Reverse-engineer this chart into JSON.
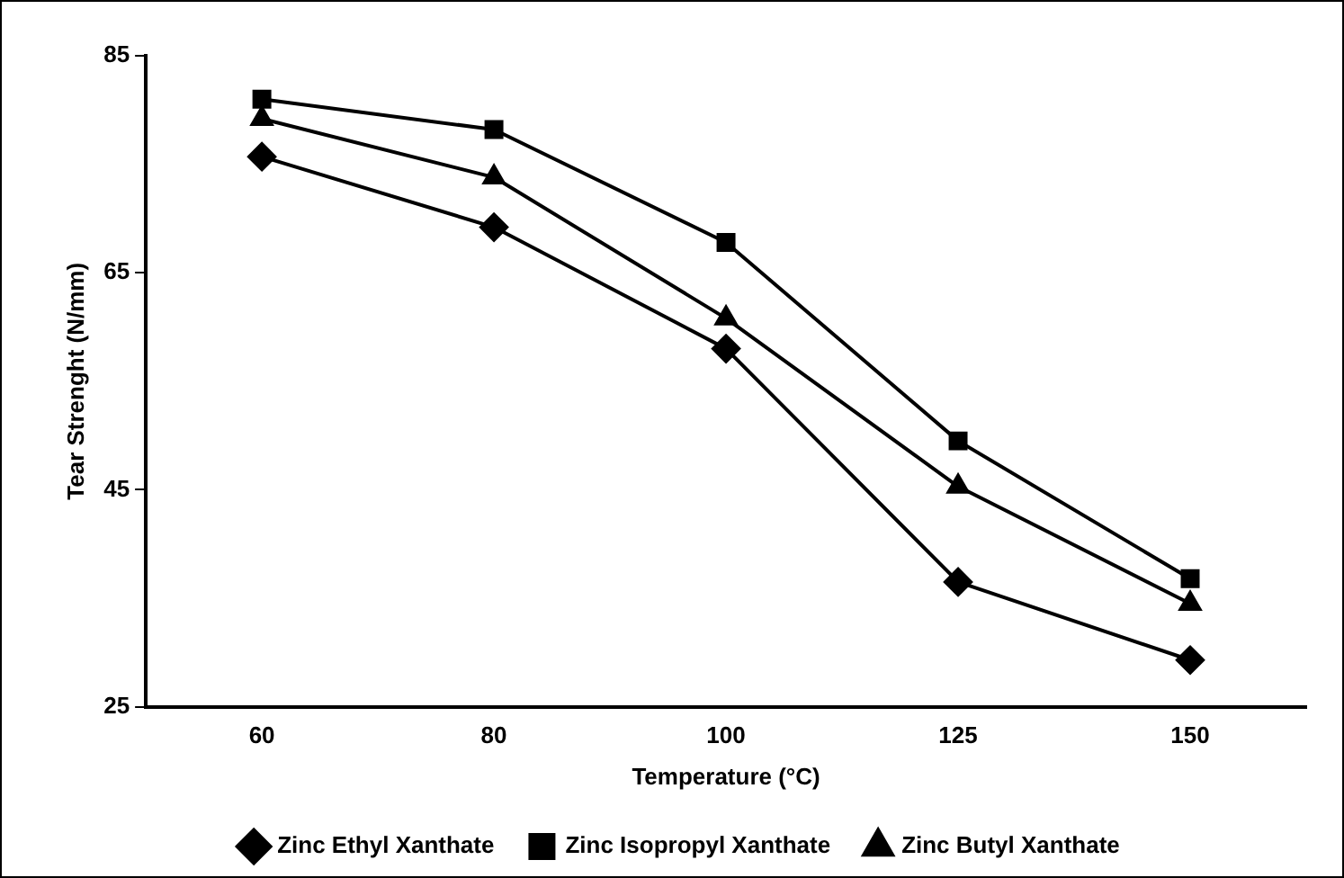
{
  "chart_data": {
    "type": "line",
    "xlabel": "Temperature (°C)",
    "ylabel": "Tear Strenght (N/mm)",
    "categories": [
      "60",
      "80",
      "100",
      "125",
      "150"
    ],
    "series": [
      {
        "name": "Zinc Ethyl Xanthate",
        "color": "#000000",
        "marker": "diamond",
        "values": [
          75.7,
          69.2,
          58.0,
          36.5,
          29.3
        ]
      },
      {
        "name": "Zinc Isopropyl Xanthate",
        "color": "#000000",
        "marker": "square",
        "values": [
          81.0,
          78.2,
          67.8,
          49.5,
          36.8
        ]
      },
      {
        "name": "Zinc Butyl Xanthate",
        "color": "#000000",
        "marker": "triangle",
        "values": [
          79.2,
          73.8,
          60.8,
          45.3,
          34.5
        ]
      }
    ],
    "ylim": [
      25,
      85
    ],
    "yticks": [
      25,
      45,
      65,
      85
    ],
    "grid": false,
    "legend": "bottom",
    "line_style": "solid"
  }
}
